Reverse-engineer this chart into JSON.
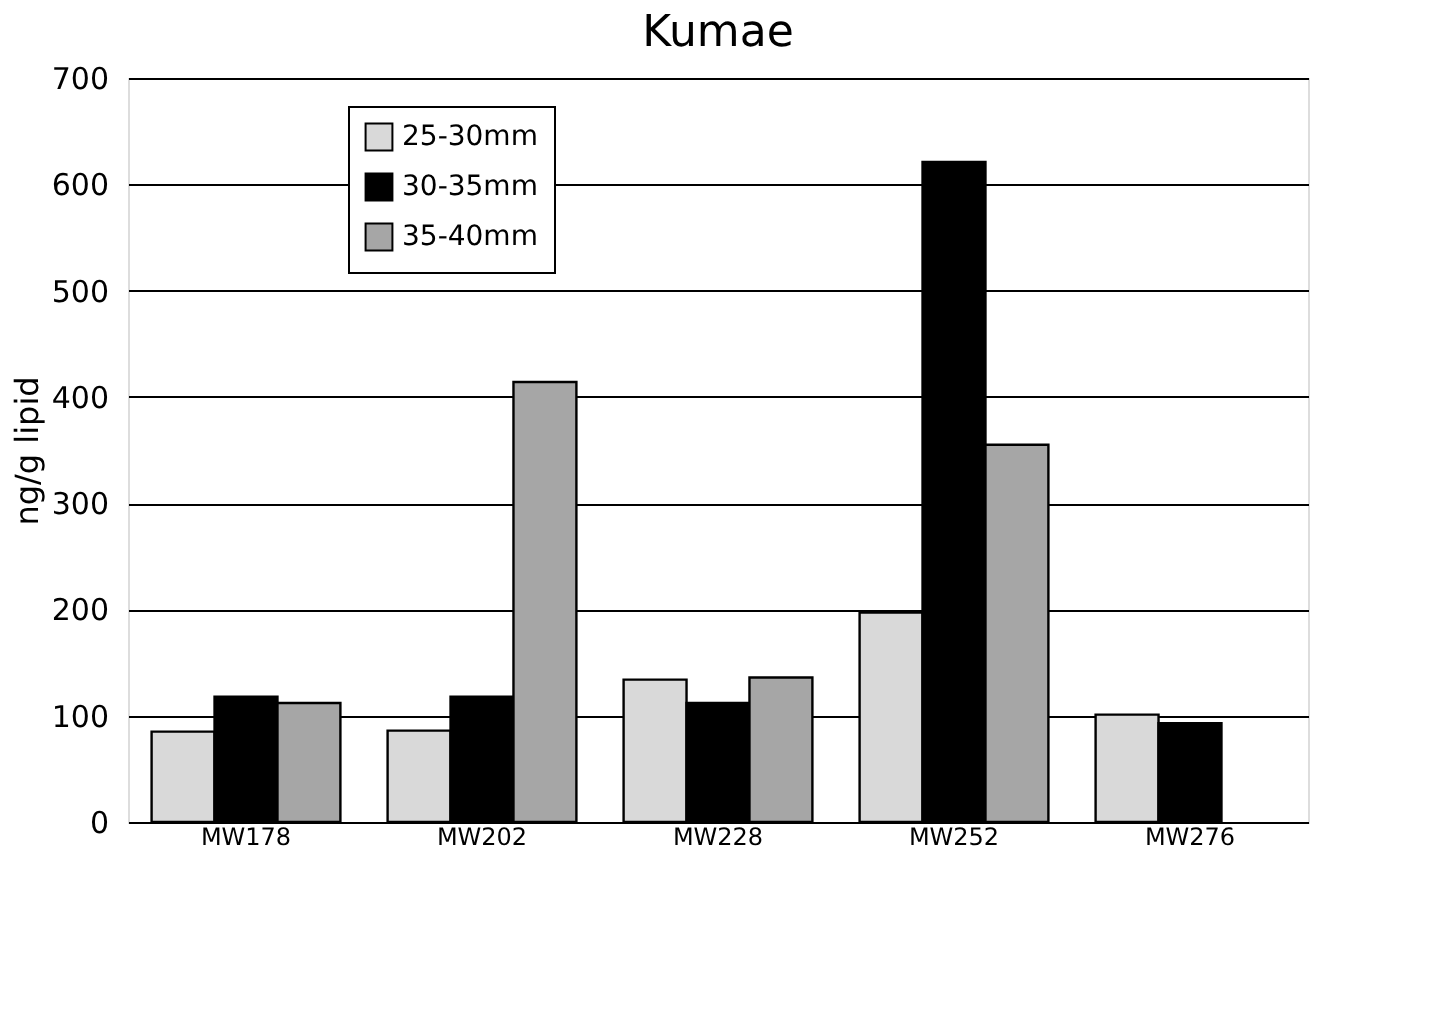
{
  "chart_data": {
    "type": "bar",
    "title": "Kumae",
    "ylabel": "ng/g lipid",
    "categories": [
      "MW178",
      "MW202",
      "MW228",
      "MW252",
      "MW276"
    ],
    "series": [
      {
        "name": "25-30mm",
        "color": "#d9d9d9",
        "values": [
          85,
          86,
          134,
          197,
          101
        ]
      },
      {
        "name": "30-35mm",
        "color": "#000000",
        "values": [
          118,
          118,
          112,
          621,
          93
        ]
      },
      {
        "name": "35-40mm",
        "color": "#a6a6a6",
        "values": [
          112,
          414,
          136,
          355,
          null
        ]
      }
    ],
    "ylim": [
      0,
      700
    ],
    "yticks": [
      0,
      100,
      200,
      300,
      400,
      500,
      600,
      700
    ],
    "grid": "y",
    "legend": "top left"
  }
}
